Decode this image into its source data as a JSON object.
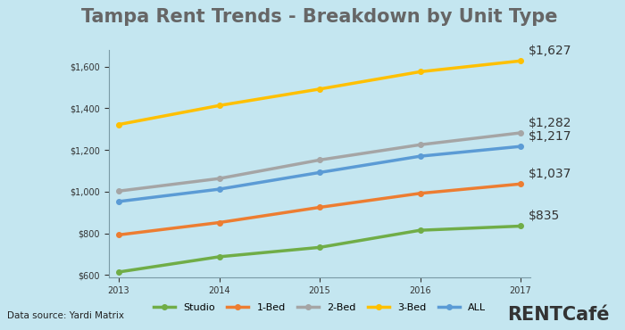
{
  "chart_data": {
    "type": "line",
    "title": "Tampa Rent Trends - Breakdown by Unit Type",
    "annotations": [
      "Data source: Yardi Matrix",
      "RENTCafé"
    ],
    "x": [
      2013,
      2014,
      2015,
      2016,
      2017
    ],
    "xlim": [
      2012.9,
      2017.1
    ],
    "xticks": [
      2013,
      2014,
      2015,
      2016,
      2017
    ],
    "ylim": [
      590,
      1680
    ],
    "yticks": [
      {
        "value": 600,
        "label": "$600"
      },
      {
        "value": 800,
        "label": "$800"
      },
      {
        "value": 1000,
        "label": "$1,000"
      },
      {
        "value": 1200,
        "label": "$1,200"
      },
      {
        "value": 1400,
        "label": "$1,400"
      },
      {
        "value": 1600,
        "label": "$1,600"
      }
    ],
    "grid": false,
    "legend": "bottom",
    "marker": "circle",
    "line_style": "solid",
    "series": [
      {
        "name": "Studio",
        "color": "#70ad47",
        "values": [
          615,
          688,
          733,
          815,
          835
        ],
        "value_labels": [
          null,
          null,
          null,
          null,
          "$835"
        ]
      },
      {
        "name": "1-Bed",
        "color": "#ed7d31",
        "values": [
          793,
          852,
          925,
          992,
          1037
        ],
        "value_labels": [
          null,
          null,
          null,
          null,
          "$1,037"
        ]
      },
      {
        "name": "2-Bed",
        "color": "#a5a5a5",
        "values": [
          1003,
          1063,
          1152,
          1225,
          1282
        ],
        "value_labels": [
          null,
          null,
          null,
          null,
          "$1,282"
        ]
      },
      {
        "name": "3-Bed",
        "color": "#ffc000",
        "values": [
          1322,
          1413,
          1492,
          1575,
          1627
        ],
        "value_labels": [
          null,
          null,
          null,
          null,
          "$1,627"
        ]
      },
      {
        "name": "ALL",
        "color": "#5b9bd5",
        "values": [
          953,
          1012,
          1092,
          1170,
          1217
        ],
        "value_labels": [
          null,
          null,
          null,
          null,
          "$1,217"
        ]
      }
    ]
  }
}
